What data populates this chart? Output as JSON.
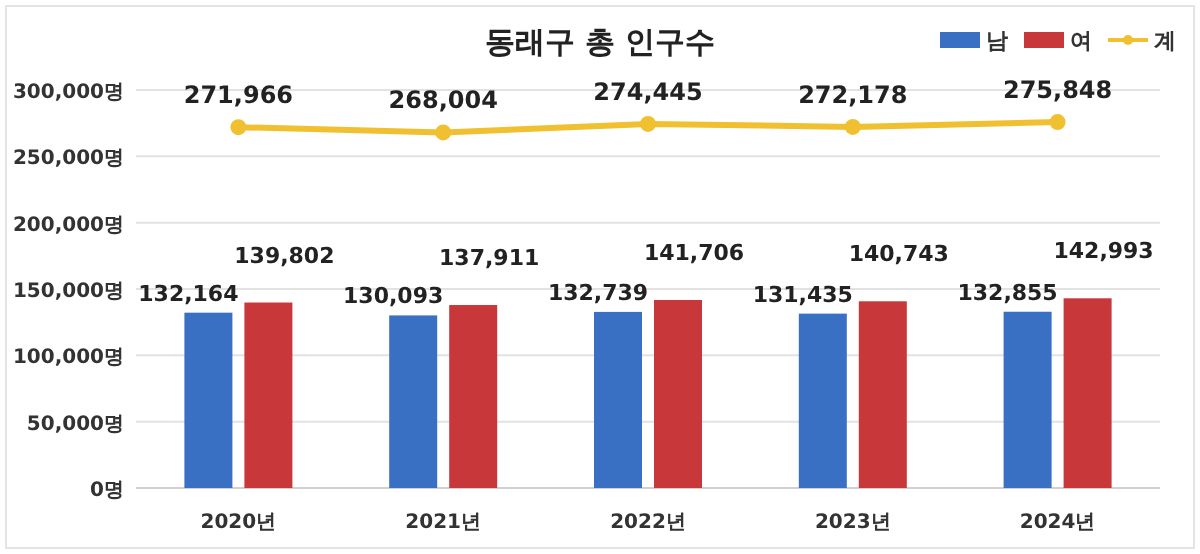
{
  "chart_data": {
    "type": "bar",
    "title": "동래구 총 인구수",
    "categories": [
      "2020년",
      "2021년",
      "2022년",
      "2023년",
      "2024년"
    ],
    "series": [
      {
        "name": "남",
        "color": "#3a70c4",
        "values": [
          132164,
          130093,
          132739,
          131435,
          132855
        ],
        "value_labels": [
          "132,164",
          "130,093",
          "132,739",
          "131,435",
          "132,855"
        ]
      },
      {
        "name": "여",
        "color": "#c8383a",
        "values": [
          139802,
          137911,
          141706,
          140743,
          142993
        ],
        "value_labels": [
          "139,802",
          "137,911",
          "141,706",
          "140,743",
          "142,993"
        ]
      },
      {
        "name": "계",
        "type": "line",
        "color": "#f0c030",
        "marker": "circle",
        "values": [
          271966,
          268004,
          274445,
          272178,
          275848
        ],
        "value_labels": [
          "271,966",
          "268,004",
          "274,445",
          "272,178",
          "275,848"
        ]
      }
    ],
    "ylim": [
      0,
      300000
    ],
    "yticks": [
      {
        "value": 0,
        "label": "0명"
      },
      {
        "value": 50000,
        "label": "50,000명"
      },
      {
        "value": 100000,
        "label": "100,000명"
      },
      {
        "value": 150000,
        "label": "150,000명"
      },
      {
        "value": 200000,
        "label": "200,000명"
      },
      {
        "value": 250000,
        "label": "250,000명"
      },
      {
        "value": 300000,
        "label": "300,000명"
      }
    ],
    "grid": "y",
    "legend": "top right"
  }
}
